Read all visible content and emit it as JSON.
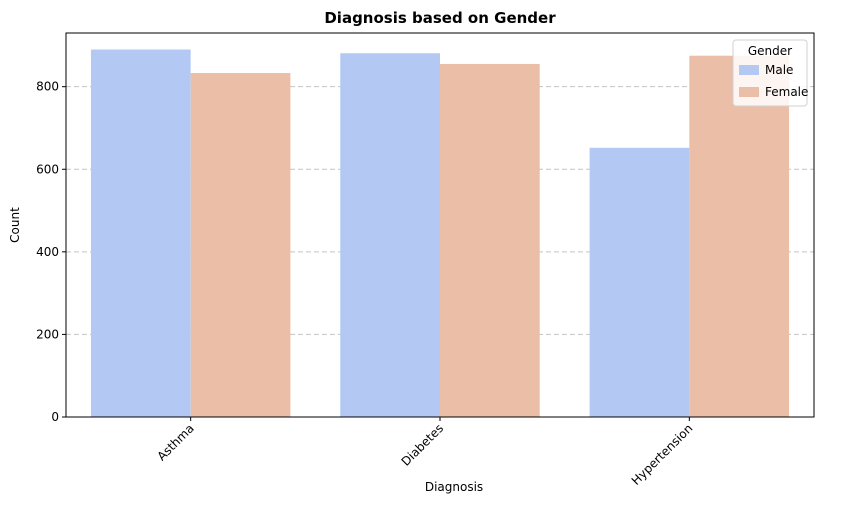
{
  "chart_data": {
    "type": "bar",
    "title": "Diagnosis based on Gender",
    "xlabel": "Diagnosis",
    "ylabel": "Count",
    "categories": [
      "Asthma",
      "Diabetes",
      "Hypertension"
    ],
    "series": [
      {
        "name": "Male",
        "values": [
          890,
          881,
          652
        ],
        "color": "#b3c9f4"
      },
      {
        "name": "Female",
        "values": [
          833,
          855,
          875
        ],
        "color": "#ebbea8"
      }
    ],
    "ylim": [
      0,
      930
    ],
    "yticks": [
      0,
      200,
      400,
      600,
      800
    ],
    "grid": "y-dashed",
    "legend": {
      "title": "Gender",
      "position": "top-right"
    }
  }
}
